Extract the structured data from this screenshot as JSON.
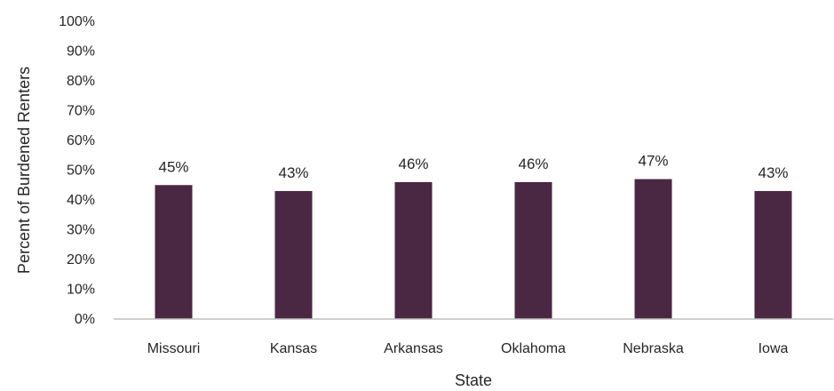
{
  "chart_data": {
    "type": "bar",
    "title": "",
    "xlabel": "State",
    "ylabel": "Percent of Burdened Renters",
    "categories": [
      "Missouri",
      "Kansas",
      "Arkansas",
      "Oklahoma",
      "Nebraska",
      "Iowa"
    ],
    "values": [
      45,
      43,
      46,
      46,
      47,
      43
    ],
    "data_labels": [
      "45%",
      "43%",
      "46%",
      "46%",
      "47%",
      "43%"
    ],
    "y_ticks": [
      "0%",
      "10%",
      "20%",
      "30%",
      "40%",
      "50%",
      "60%",
      "70%",
      "80%",
      "90%",
      "100%"
    ],
    "ylim": [
      0,
      100
    ],
    "grid": false,
    "legend": "none",
    "colors": {
      "bar": "#4a2742",
      "axis": "#bfbfbf",
      "text": "#262626"
    }
  }
}
